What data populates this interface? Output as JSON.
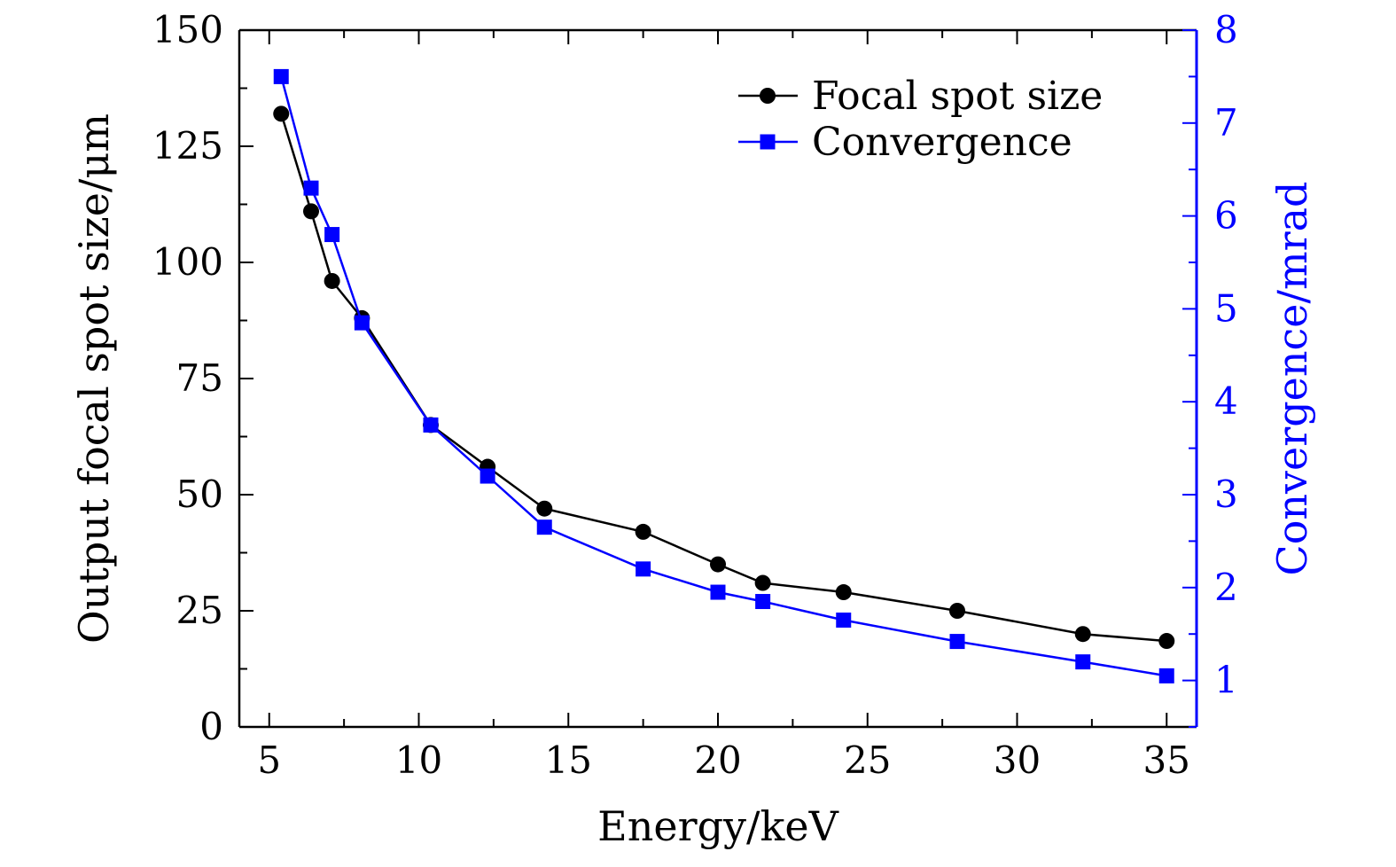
{
  "chart_data": {
    "type": "line",
    "title": "",
    "xlabel": "Energy/keV",
    "ylabel_left": "Output focal spot size/μm",
    "ylabel_right": "Convergence/mrad",
    "xlim": [
      4,
      36
    ],
    "ylim_left": [
      0,
      150
    ],
    "ylim_right": [
      0.5,
      8
    ],
    "xticks": [
      5,
      10,
      15,
      20,
      25,
      30,
      35
    ],
    "yticks_left": [
      0,
      25,
      50,
      75,
      100,
      125,
      150
    ],
    "yticks_right": [
      1,
      2,
      3,
      4,
      5,
      6,
      7,
      8
    ],
    "grid": false,
    "legend_position": "top-right",
    "colors": {
      "axis_left": "#000000",
      "axis_right": "#0000ff"
    },
    "series": [
      {
        "name": "Focal spot size",
        "axis": "left",
        "marker": "circle",
        "color": "#000000",
        "x": [
          5.4,
          6.4,
          7.1,
          8.1,
          10.4,
          12.3,
          14.2,
          17.5,
          20.0,
          21.5,
          24.2,
          28.0,
          32.2,
          35.0
        ],
        "y": [
          132,
          111,
          96,
          88,
          65,
          56,
          47,
          42,
          35,
          31,
          29,
          25,
          20,
          18.5
        ]
      },
      {
        "name": "Convergence",
        "axis": "right",
        "marker": "square",
        "color": "#0000ff",
        "x": [
          5.4,
          6.4,
          7.1,
          8.1,
          10.4,
          12.3,
          14.2,
          17.5,
          20.0,
          21.5,
          24.2,
          28.0,
          32.2,
          35.0
        ],
        "y": [
          7.5,
          6.3,
          5.8,
          4.85,
          3.75,
          3.2,
          2.65,
          2.2,
          1.95,
          1.85,
          1.65,
          1.42,
          1.2,
          1.05
        ]
      }
    ]
  }
}
